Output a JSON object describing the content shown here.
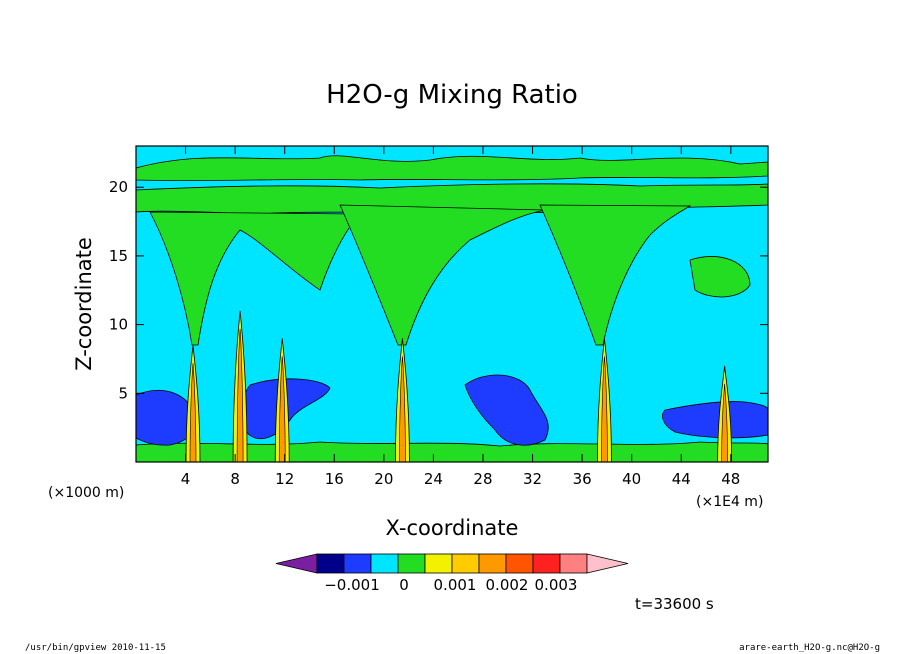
{
  "chart_data": {
    "type": "heatmap",
    "title": "H2O-g Mixing Ratio",
    "xlabel": "X-coordinate",
    "ylabel": "Z-coordinate",
    "x_unit": "(×1000 m)",
    "x_scale_note": "(×1E4 m)",
    "xlim": [
      0,
      51
    ],
    "ylim": [
      0,
      23
    ],
    "x_ticks": [
      4,
      8,
      12,
      16,
      20,
      24,
      28,
      32,
      36,
      40,
      44,
      48
    ],
    "y_ticks": [
      5,
      10,
      15,
      20
    ],
    "x_tick_labels": [
      "4",
      "8",
      "12",
      "16",
      "20",
      "24",
      "28",
      "32",
      "36",
      "40",
      "44",
      "48"
    ],
    "y_tick_labels": [
      "5",
      "10",
      "15",
      "20"
    ],
    "colorbar": {
      "labels": [
        "−0.001",
        "0",
        "0.001",
        "0.002",
        "0.003"
      ],
      "colors": [
        "#7b1fa2",
        "#00008b",
        "#1e3cff",
        "#00e5ff",
        "#22dd22",
        "#f2f200",
        "#ffcc00",
        "#ff9900",
        "#ff5500",
        "#ff2020",
        "#ff8080",
        "#ffc0cb"
      ]
    },
    "plumes": [
      {
        "x": 4.6,
        "top": 8.5
      },
      {
        "x": 8.4,
        "top": 11
      },
      {
        "x": 11.8,
        "top": 9
      },
      {
        "x": 21.5,
        "top": 9
      },
      {
        "x": 37.8,
        "top": 9
      },
      {
        "x": 47.5,
        "top": 7
      }
    ],
    "time_label": "t=33600 s"
  },
  "footer": {
    "left": "/usr/bin/gpview   2010-11-15",
    "right": "arare-earth_H2O-g.nc@H2O-g"
  }
}
